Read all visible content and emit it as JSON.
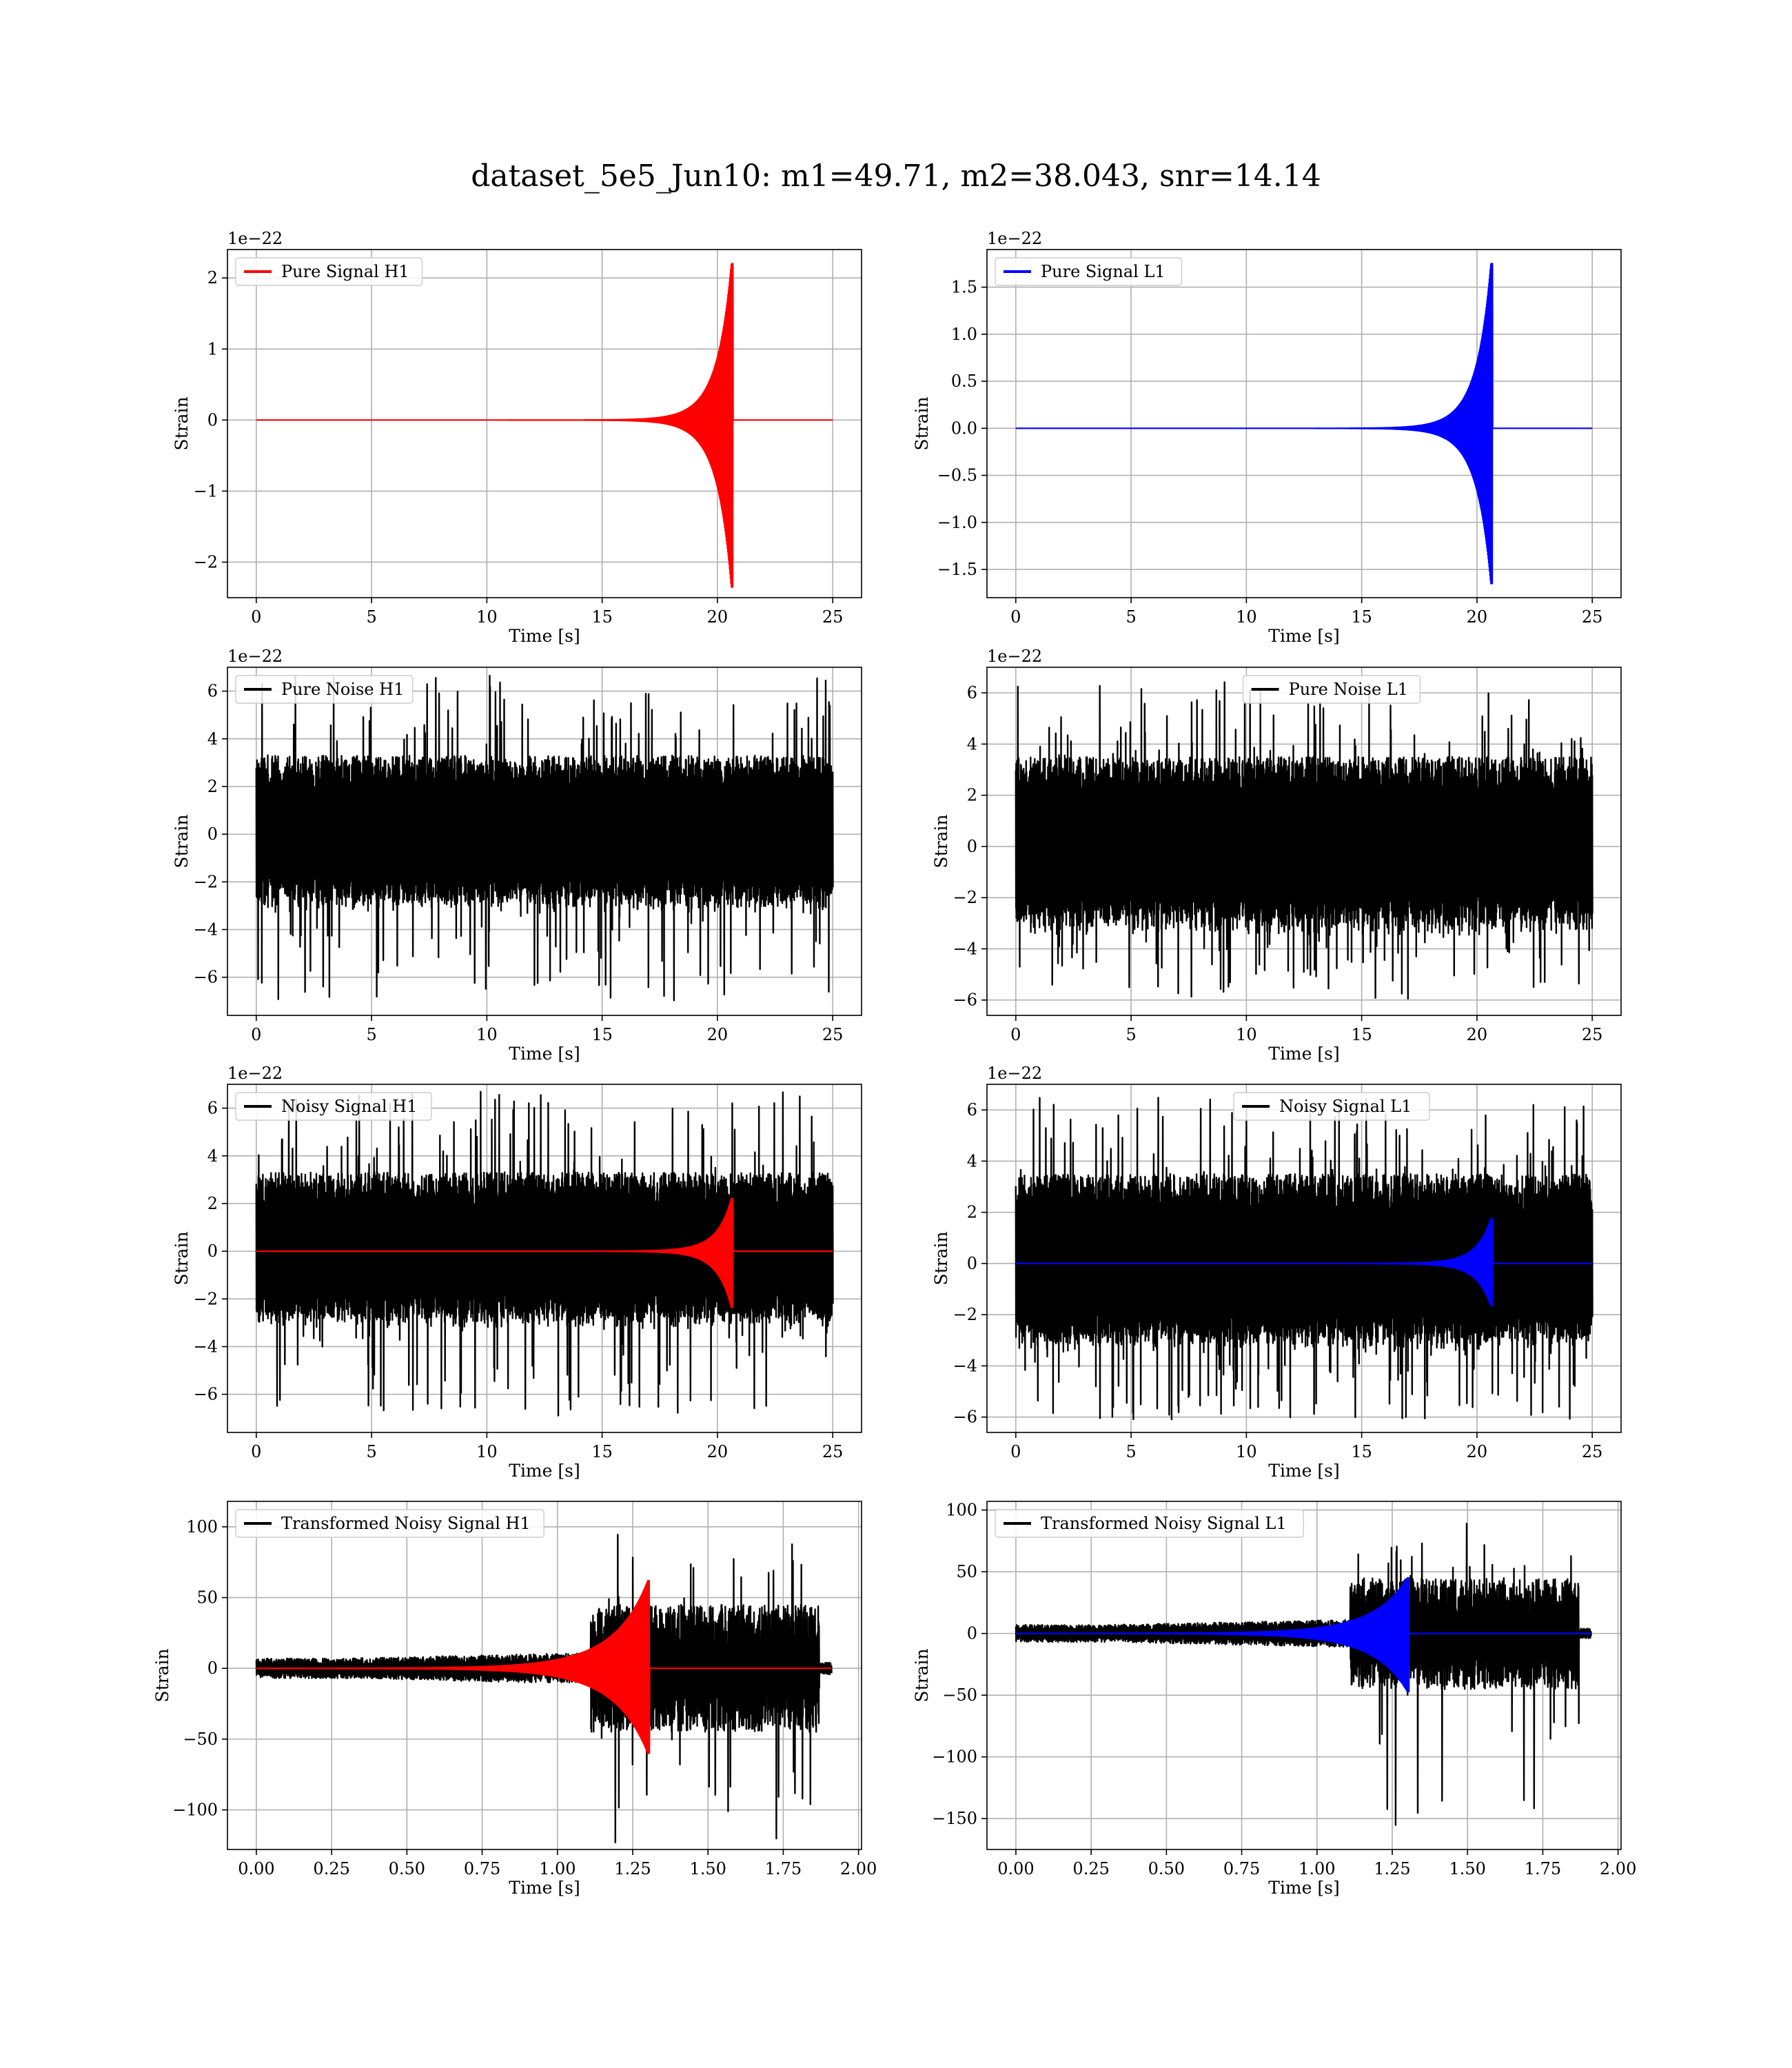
{
  "title": "dataset_5e5_Jun10: m1=49.71, m2=38.043, snr=14.14",
  "colors": {
    "h1": "#ff0000",
    "l1": "#0000ff",
    "noise": "#000000",
    "grid": "#b0b0b0"
  },
  "chart_data": [
    {
      "id": "pure-signal-h1",
      "type": "line",
      "xlabel": "Time [s]",
      "ylabel": "Strain",
      "multiplier": "1e−22",
      "xlim": [
        -1.25,
        26.25
      ],
      "ylim": [
        -2.5,
        2.4
      ],
      "xticks": [
        0,
        5,
        10,
        15,
        20,
        25
      ],
      "xtick_labels": [
        "0",
        "5",
        "10",
        "15",
        "20",
        "25"
      ],
      "yticks": [
        -2,
        -1,
        0,
        1,
        2
      ],
      "ytick_labels": [
        "−2",
        "−1",
        "0",
        "1",
        "2"
      ],
      "legend_position": "upper-left",
      "grid": true,
      "series": [
        {
          "name": "Pure Signal H1",
          "color": "#ff0000",
          "kind": "chirp",
          "t_start": 0,
          "t_end": 25,
          "t_merger": 20.6,
          "peak_pos": 2.2,
          "peak_neg": -2.35
        }
      ]
    },
    {
      "id": "pure-signal-l1",
      "type": "line",
      "xlabel": "Time [s]",
      "ylabel": "Strain",
      "multiplier": "1e−22",
      "xlim": [
        -1.25,
        26.25
      ],
      "ylim": [
        -1.8,
        1.9
      ],
      "xticks": [
        0,
        5,
        10,
        15,
        20,
        25
      ],
      "xtick_labels": [
        "0",
        "5",
        "10",
        "15",
        "20",
        "25"
      ],
      "yticks": [
        -1.5,
        -1.0,
        -0.5,
        0.0,
        0.5,
        1.0,
        1.5
      ],
      "ytick_labels": [
        "−1.5",
        "−1.0",
        "−0.5",
        "0.0",
        "0.5",
        "1.0",
        "1.5"
      ],
      "legend_position": "upper-left",
      "grid": true,
      "series": [
        {
          "name": "Pure Signal L1",
          "color": "#0000ff",
          "kind": "chirp",
          "t_start": 0,
          "t_end": 25,
          "t_merger": 20.6,
          "peak_pos": 1.75,
          "peak_neg": -1.65
        }
      ]
    },
    {
      "id": "pure-noise-h1",
      "type": "line",
      "xlabel": "Time [s]",
      "ylabel": "Strain",
      "multiplier": "1e−22",
      "xlim": [
        -1.25,
        26.25
      ],
      "ylim": [
        -7.6,
        7.0
      ],
      "xticks": [
        0,
        5,
        10,
        15,
        20,
        25
      ],
      "xtick_labels": [
        "0",
        "5",
        "10",
        "15",
        "20",
        "25"
      ],
      "yticks": [
        -6,
        -4,
        -2,
        0,
        2,
        4,
        6
      ],
      "ytick_labels": [
        "−6",
        "−4",
        "−2",
        "0",
        "2",
        "4",
        "6"
      ],
      "legend_position": "upper-left",
      "grid": true,
      "series": [
        {
          "name": "Pure Noise H1",
          "color": "#000000",
          "kind": "noise",
          "t_start": 0,
          "t_end": 25,
          "band": 3.3,
          "max": 6.7,
          "min": -7.0
        }
      ]
    },
    {
      "id": "pure-noise-l1",
      "type": "line",
      "xlabel": "Time [s]",
      "ylabel": "Strain",
      "multiplier": "1e−22",
      "xlim": [
        -1.25,
        26.25
      ],
      "ylim": [
        -6.6,
        7.0
      ],
      "xticks": [
        0,
        5,
        10,
        15,
        20,
        25
      ],
      "xtick_labels": [
        "0",
        "5",
        "10",
        "15",
        "20",
        "25"
      ],
      "yticks": [
        -6,
        -4,
        -2,
        0,
        2,
        4,
        6
      ],
      "ytick_labels": [
        "−6",
        "−4",
        "−2",
        "0",
        "2",
        "4",
        "6"
      ],
      "legend_position": "upper-center",
      "grid": true,
      "series": [
        {
          "name": "Pure Noise L1",
          "color": "#000000",
          "kind": "noise",
          "t_start": 0,
          "t_end": 25,
          "band": 3.5,
          "max": 6.5,
          "min": -6.1
        }
      ]
    },
    {
      "id": "noisy-signal-h1",
      "type": "line",
      "xlabel": "Time [s]",
      "ylabel": "Strain",
      "multiplier": "1e−22",
      "xlim": [
        -1.25,
        26.25
      ],
      "ylim": [
        -7.6,
        7.0
      ],
      "xticks": [
        0,
        5,
        10,
        15,
        20,
        25
      ],
      "xtick_labels": [
        "0",
        "5",
        "10",
        "15",
        "20",
        "25"
      ],
      "yticks": [
        -6,
        -4,
        -2,
        0,
        2,
        4,
        6
      ],
      "ytick_labels": [
        "−6",
        "−4",
        "−2",
        "0",
        "2",
        "4",
        "6"
      ],
      "legend_position": "upper-left",
      "grid": true,
      "series": [
        {
          "name": "Noisy Signal H1",
          "color": "#000000",
          "kind": "noise",
          "t_start": 0,
          "t_end": 25,
          "band": 3.3,
          "max": 6.7,
          "min": -7.0
        },
        {
          "name": "",
          "color": "#ff0000",
          "kind": "chirp",
          "t_start": 0,
          "t_end": 25,
          "t_merger": 20.6,
          "peak_pos": 2.2,
          "peak_neg": -2.35
        }
      ]
    },
    {
      "id": "noisy-signal-l1",
      "type": "line",
      "xlabel": "Time [s]",
      "ylabel": "Strain",
      "multiplier": "1e−22",
      "xlim": [
        -1.25,
        26.25
      ],
      "ylim": [
        -6.6,
        7.0
      ],
      "xticks": [
        0,
        5,
        10,
        15,
        20,
        25
      ],
      "xtick_labels": [
        "0",
        "5",
        "10",
        "15",
        "20",
        "25"
      ],
      "yticks": [
        -6,
        -4,
        -2,
        0,
        2,
        4,
        6
      ],
      "ytick_labels": [
        "−6",
        "−4",
        "−2",
        "0",
        "2",
        "4",
        "6"
      ],
      "legend_position": "upper-center",
      "grid": true,
      "series": [
        {
          "name": "Noisy Signal L1",
          "color": "#000000",
          "kind": "noise",
          "t_start": 0,
          "t_end": 25,
          "band": 3.5,
          "max": 6.5,
          "min": -6.1
        },
        {
          "name": "",
          "color": "#0000ff",
          "kind": "chirp",
          "t_start": 0,
          "t_end": 25,
          "t_merger": 20.6,
          "peak_pos": 1.75,
          "peak_neg": -1.65
        }
      ]
    },
    {
      "id": "transformed-noisy-signal-h1",
      "type": "line",
      "xlabel": "Time [s]",
      "ylabel": "Strain",
      "multiplier": "",
      "xlim": [
        -0.096,
        2.01
      ],
      "ylim": [
        -128,
        118
      ],
      "xticks": [
        0,
        0.25,
        0.5,
        0.75,
        1.0,
        1.25,
        1.5,
        1.75,
        2.0
      ],
      "xtick_labels": [
        "0.00",
        "0.25",
        "0.50",
        "0.75",
        "1.00",
        "1.25",
        "1.50",
        "1.75",
        "2.00"
      ],
      "yticks": [
        -100,
        -50,
        0,
        50,
        100
      ],
      "ytick_labels": [
        "−100",
        "−50",
        "0",
        "50",
        "100"
      ],
      "legend_position": "upper-left",
      "grid": true,
      "series": [
        {
          "name": "Transformed Noisy Signal H1",
          "color": "#000000",
          "kind": "whitened",
          "t_start": 0,
          "t_end": 1.91,
          "t_burst": 1.11,
          "t_drop": 1.87,
          "quiet_band": 7,
          "loud_band": 45,
          "max": 104,
          "min": -124
        },
        {
          "name": "",
          "color": "#ff0000",
          "kind": "chirp",
          "t_start": 0,
          "t_end": 1.91,
          "t_merger": 1.3,
          "peak_pos": 62,
          "peak_neg": -60,
          "tau": 0.55
        }
      ]
    },
    {
      "id": "transformed-noisy-signal-l1",
      "type": "line",
      "xlabel": "Time [s]",
      "ylabel": "Strain",
      "multiplier": "",
      "xlim": [
        -0.096,
        2.01
      ],
      "ylim": [
        -175,
        107
      ],
      "xticks": [
        0,
        0.25,
        0.5,
        0.75,
        1.0,
        1.25,
        1.5,
        1.75,
        2.0
      ],
      "xtick_labels": [
        "0.00",
        "0.25",
        "0.50",
        "0.75",
        "1.00",
        "1.25",
        "1.50",
        "1.75",
        "2.00"
      ],
      "yticks": [
        -150,
        -100,
        -50,
        0,
        50,
        100
      ],
      "ytick_labels": [
        "−150",
        "−100",
        "−50",
        "0",
        "50",
        "100"
      ],
      "legend_position": "upper-left",
      "grid": true,
      "series": [
        {
          "name": "Transformed Noisy Signal L1",
          "color": "#000000",
          "kind": "whitened",
          "t_start": 0,
          "t_end": 1.91,
          "t_burst": 1.11,
          "t_drop": 1.87,
          "quiet_band": 7,
          "loud_band": 45,
          "max": 93,
          "min": -165
        },
        {
          "name": "",
          "color": "#0000ff",
          "kind": "chirp",
          "t_start": 0,
          "t_end": 1.91,
          "t_merger": 1.3,
          "peak_pos": 45,
          "peak_neg": -47,
          "tau": 0.55
        }
      ]
    }
  ]
}
